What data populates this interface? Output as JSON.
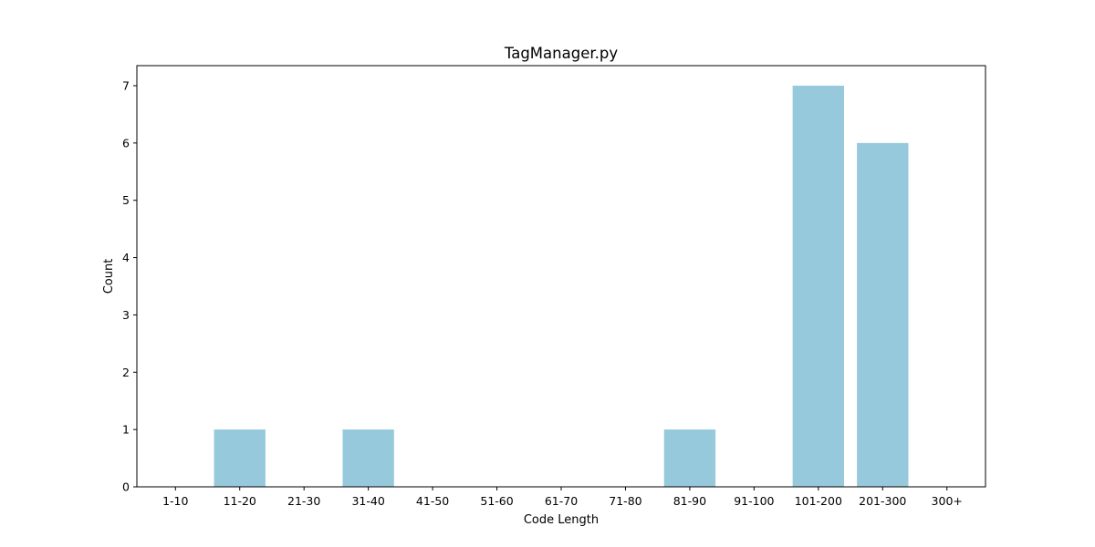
{
  "chart_data": {
    "type": "bar",
    "title": "TagManager.py",
    "xlabel": "Code Length",
    "ylabel": "Count",
    "categories": [
      "1-10",
      "11-20",
      "21-30",
      "31-40",
      "41-50",
      "51-60",
      "61-70",
      "71-80",
      "81-90",
      "91-100",
      "101-200",
      "201-300",
      "300+"
    ],
    "values": [
      0,
      1,
      0,
      1,
      0,
      0,
      0,
      0,
      1,
      0,
      7,
      6,
      0
    ],
    "ylim": [
      0,
      7.35
    ],
    "yticks": [
      0,
      1,
      2,
      3,
      4,
      5,
      6,
      7
    ],
    "bar_color": "#96c9dc",
    "grid": false,
    "legend": false
  }
}
